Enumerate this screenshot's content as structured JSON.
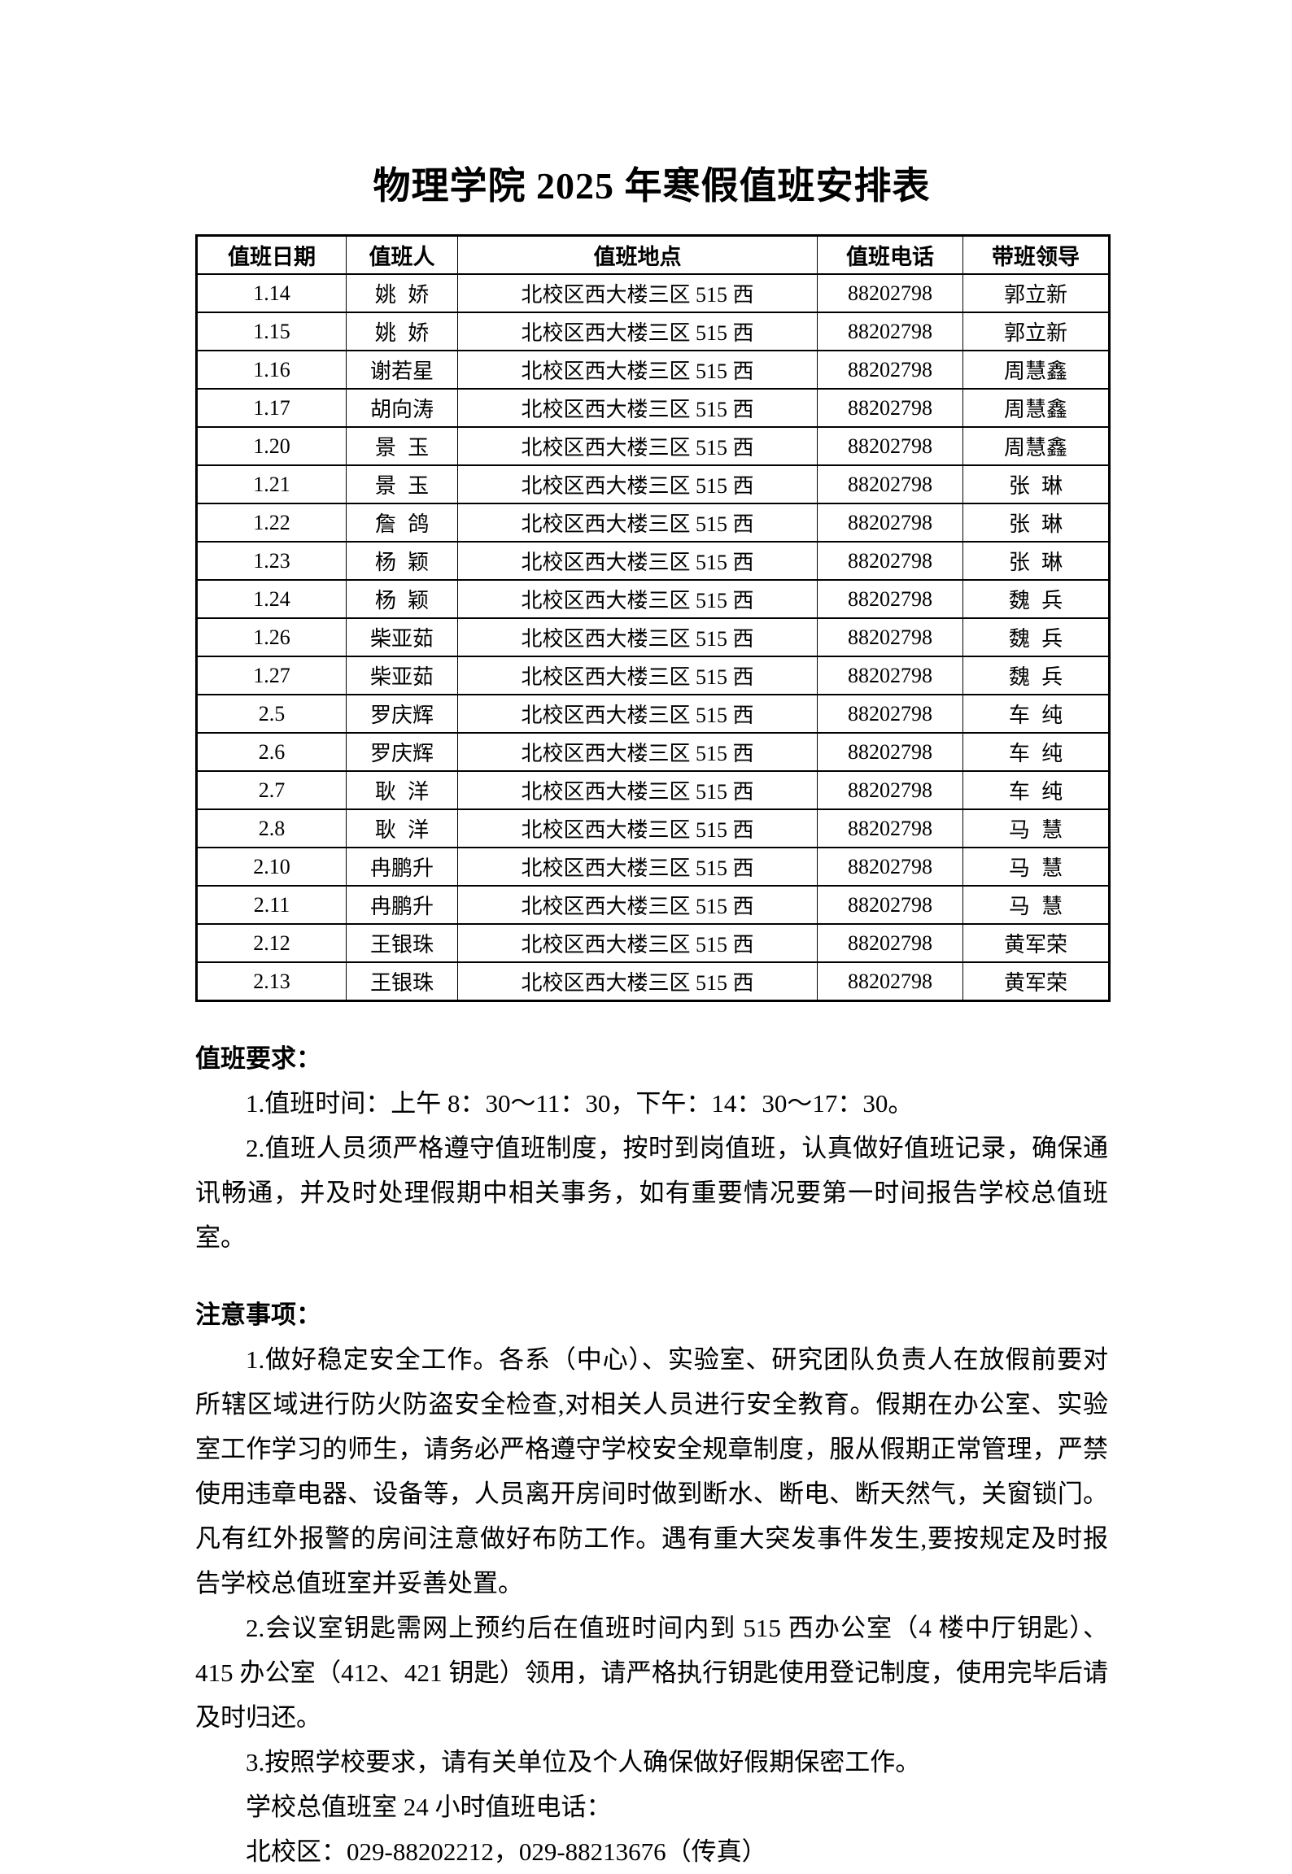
{
  "page": {
    "title": "物理学院 2025 年寒假值班安排表"
  },
  "table": {
    "headers": [
      "值班日期",
      "值班人",
      "值班地点",
      "值班电话",
      "带班领导"
    ],
    "rows": [
      [
        "1.14",
        "姚娇",
        "北校区西大楼三区 515 西",
        "88202798",
        "郭立新"
      ],
      [
        "1.15",
        "姚娇",
        "北校区西大楼三区 515 西",
        "88202798",
        "郭立新"
      ],
      [
        "1.16",
        "谢若星",
        "北校区西大楼三区 515 西",
        "88202798",
        "周慧鑫"
      ],
      [
        "1.17",
        "胡向涛",
        "北校区西大楼三区 515 西",
        "88202798",
        "周慧鑫"
      ],
      [
        "1.20",
        "景玉",
        "北校区西大楼三区 515 西",
        "88202798",
        "周慧鑫"
      ],
      [
        "1.21",
        "景玉",
        "北校区西大楼三区 515 西",
        "88202798",
        "张琳"
      ],
      [
        "1.22",
        "詹鸽",
        "北校区西大楼三区 515 西",
        "88202798",
        "张琳"
      ],
      [
        "1.23",
        "杨颖",
        "北校区西大楼三区 515 西",
        "88202798",
        "张琳"
      ],
      [
        "1.24",
        "杨颖",
        "北校区西大楼三区 515 西",
        "88202798",
        "魏兵"
      ],
      [
        "1.26",
        "柴亚茹",
        "北校区西大楼三区 515 西",
        "88202798",
        "魏兵"
      ],
      [
        "1.27",
        "柴亚茹",
        "北校区西大楼三区 515 西",
        "88202798",
        "魏兵"
      ],
      [
        "2.5",
        "罗庆辉",
        "北校区西大楼三区 515 西",
        "88202798",
        "车纯"
      ],
      [
        "2.6",
        "罗庆辉",
        "北校区西大楼三区 515 西",
        "88202798",
        "车纯"
      ],
      [
        "2.7",
        "耿洋",
        "北校区西大楼三区 515 西",
        "88202798",
        "车纯"
      ],
      [
        "2.8",
        "耿洋",
        "北校区西大楼三区 515 西",
        "88202798",
        "马慧"
      ],
      [
        "2.10",
        "冉鹏升",
        "北校区西大楼三区 515 西",
        "88202798",
        "马慧"
      ],
      [
        "2.11",
        "冉鹏升",
        "北校区西大楼三区 515 西",
        "88202798",
        "马慧"
      ],
      [
        "2.12",
        "王银珠",
        "北校区西大楼三区 515 西",
        "88202798",
        "黄军荣"
      ],
      [
        "2.13",
        "王银珠",
        "北校区西大楼三区 515 西",
        "88202798",
        "黄军荣"
      ]
    ]
  },
  "sections": [
    {
      "heading": "值班要求：",
      "paragraphs": [
        "1.值班时间：上午 8：30～11：30，下午：14：30～17：30。",
        "2.值班人员须严格遵守值班制度，按时到岗值班，认真做好值班记录，确保通讯畅通，并及时处理假期中相关事务，如有重要情况要第一时间报告学校总值班室。"
      ]
    },
    {
      "heading": "注意事项：",
      "paragraphs": [
        "1.做好稳定安全工作。各系（中心）、实验室、研究团队负责人在放假前要对所辖区域进行防火防盗安全检查,对相关人员进行安全教育。假期在办公室、实验室工作学习的师生，请务必严格遵守学校安全规章制度，服从假期正常管理，严禁使用违章电器、设备等，人员离开房间时做到断水、断电、断天然气，关窗锁门。凡有红外报警的房间注意做好布防工作。遇有重大突发事件发生,要按规定及时报告学校总值班室并妥善处置。",
        "2.会议室钥匙需网上预约后在值班时间内到 515 西办公室（4 楼中厅钥匙）、415 办公室（412、421 钥匙）领用，请严格执行钥匙使用登记制度，使用完毕后请及时归还。",
        "3.按照学校要求，请有关单位及个人确保做好假期保密工作。",
        "学校总值班室 24 小时值班电话：",
        "北校区：029-88202212，029-88213676（传真）"
      ]
    }
  ]
}
